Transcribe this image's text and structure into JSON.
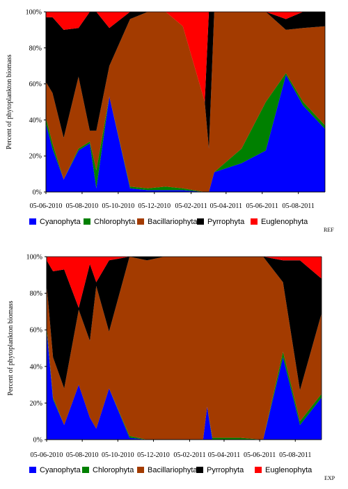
{
  "chart_data": [
    {
      "type": "area",
      "stacked": "percent",
      "tag": "REF",
      "ylabel": "Percent of phytoplankton biomass",
      "yticks": [
        "0%",
        "20%",
        "40%",
        "60%",
        "80%",
        "100%"
      ],
      "ylim": [
        0,
        100
      ],
      "xticks": [
        {
          "date": "2010-06-05",
          "label": "05-06-2010"
        },
        {
          "date": "2010-08-05",
          "label": "05-08-2010"
        },
        {
          "date": "2010-10-05",
          "label": "05-10-2010"
        },
        {
          "date": "2010-12-05",
          "label": "05-12-2010"
        },
        {
          "date": "2011-02-05",
          "label": "05-02-2011"
        },
        {
          "date": "2011-04-05",
          "label": "05-04-2011"
        },
        {
          "date": "2011-06-05",
          "label": "05-06-2011"
        },
        {
          "date": "2011-08-05",
          "label": "05-08-2011"
        }
      ],
      "xlim": [
        "2010-06-05",
        "2011-09-19"
      ],
      "legend_position": "bottom",
      "x": [
        "2010-06-05",
        "2010-06-16",
        "2010-07-05",
        "2010-07-30",
        "2010-08-18",
        "2010-08-29",
        "2010-09-20",
        "2010-10-25",
        "2010-11-24",
        "2010-12-24",
        "2011-01-22",
        "2011-02-28",
        "2011-03-07",
        "2011-03-16",
        "2011-05-01",
        "2011-06-11",
        "2011-07-15",
        "2011-08-13",
        "2011-09-19"
      ],
      "series": [
        {
          "name": "Cyanophyta",
          "color": "#0000ff",
          "values": [
            38,
            24,
            7,
            23,
            27,
            2,
            53,
            2,
            1,
            1,
            1,
            0,
            0,
            11,
            16,
            23,
            65,
            48,
            35
          ]
        },
        {
          "name": "Chlorophyta",
          "color": "#008000",
          "values": [
            3,
            3,
            0,
            1,
            1,
            10,
            0,
            1,
            1,
            2,
            1,
            0,
            0,
            0,
            8,
            27,
            1,
            2,
            2
          ]
        },
        {
          "name": "Bacillariophyta",
          "color": "#a33b00",
          "values": [
            20,
            28,
            23,
            40,
            6,
            22,
            17,
            93,
            98,
            97,
            90,
            50,
            24,
            89,
            76,
            50,
            24,
            41,
            55
          ]
        },
        {
          "name": "Pyrrophyta",
          "color": "#000000",
          "values": [
            36,
            42,
            60,
            27,
            66,
            66,
            21,
            4,
            0,
            0,
            0,
            0,
            76,
            0,
            0,
            0,
            6,
            24,
            8
          ]
        },
        {
          "name": "Euglenophyta",
          "color": "#ff0000",
          "values": [
            3,
            3,
            10,
            9,
            0,
            0,
            9,
            0,
            0,
            0,
            8,
            50,
            0,
            0,
            0,
            0,
            4,
            0,
            0
          ]
        }
      ]
    },
    {
      "type": "area",
      "stacked": "percent",
      "tag": "EXP",
      "ylabel": "Percent of phytoplankton biomass",
      "yticks": [
        "0%",
        "20%",
        "40%",
        "60%",
        "80%",
        "100%"
      ],
      "ylim": [
        0,
        100
      ],
      "xticks": [
        {
          "date": "2010-06-05",
          "label": "05-06-2010"
        },
        {
          "date": "2010-08-05",
          "label": "05-08-2010"
        },
        {
          "date": "2010-10-05",
          "label": "05-10-2010"
        },
        {
          "date": "2010-12-05",
          "label": "05-12-2010"
        },
        {
          "date": "2011-02-05",
          "label": "05-02-2011"
        },
        {
          "date": "2011-04-05",
          "label": "05-04-2011"
        },
        {
          "date": "2011-06-05",
          "label": "05-06-2011"
        },
        {
          "date": "2011-08-05",
          "label": "05-08-2011"
        }
      ],
      "xlim": [
        "2010-06-05",
        "2011-09-19"
      ],
      "legend_position": "bottom",
      "x": [
        "2010-06-05",
        "2010-06-16",
        "2010-07-05",
        "2010-07-30",
        "2010-08-18",
        "2010-08-29",
        "2010-09-20",
        "2010-10-25",
        "2010-11-24",
        "2010-12-24",
        "2011-01-22",
        "2011-02-28",
        "2011-03-07",
        "2011-03-16",
        "2011-05-01",
        "2011-06-11",
        "2011-07-15",
        "2011-08-13",
        "2011-09-19"
      ],
      "series": [
        {
          "name": "Cyanophyta",
          "color": "#0000ff",
          "values": [
            60,
            22,
            8,
            30,
            12,
            6,
            28,
            1,
            0,
            0,
            0,
            0,
            18,
            0,
            0,
            0,
            45,
            8,
            23
          ]
        },
        {
          "name": "Chlorophyta",
          "color": "#008000",
          "values": [
            2,
            1,
            0,
            0,
            0,
            0,
            0,
            1,
            0,
            0,
            0,
            0,
            0,
            1,
            1,
            0,
            3,
            2,
            2
          ]
        },
        {
          "name": "Bacillariophyta",
          "color": "#a33b00",
          "values": [
            23,
            22,
            20,
            41,
            42,
            78,
            31,
            98,
            98,
            100,
            100,
            100,
            82,
            99,
            99,
            100,
            38,
            17,
            44
          ]
        },
        {
          "name": "Pyrrophyta",
          "color": "#000000",
          "values": [
            13,
            47,
            65,
            1,
            42,
            2,
            39,
            0,
            2,
            0,
            0,
            0,
            0,
            0,
            0,
            0,
            12,
            71,
            19
          ]
        },
        {
          "name": "Euglenophyta",
          "color": "#ff0000",
          "values": [
            2,
            8,
            7,
            28,
            4,
            14,
            2,
            0,
            0,
            0,
            0,
            0,
            0,
            0,
            0,
            0,
            2,
            2,
            12
          ]
        }
      ]
    }
  ]
}
